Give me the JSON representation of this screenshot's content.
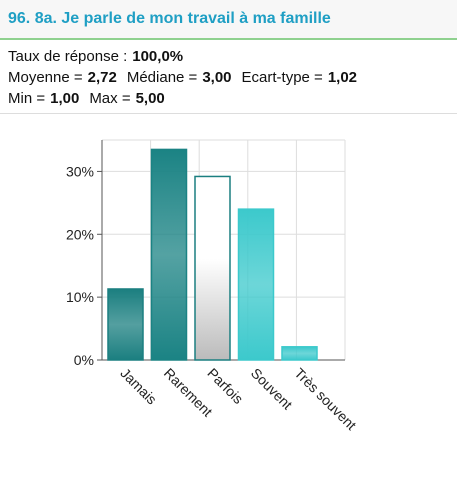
{
  "header": {
    "title": "96. 8a. Je parle de mon travail à ma famille"
  },
  "stats": [
    [
      {
        "label": "Taux de réponse :",
        "value": "100,0%"
      }
    ],
    [
      {
        "label": "Moyenne =",
        "value": "2,72"
      },
      {
        "label": "Médiane =",
        "value": "3,00"
      },
      {
        "label": "Ecart-type =",
        "value": "1,02"
      }
    ],
    [
      {
        "label": "Min =",
        "value": "1,00"
      },
      {
        "label": "Max =",
        "value": "5,00"
      }
    ]
  ],
  "chart_data": {
    "type": "bar",
    "categories": [
      "Jamais",
      "Rarement",
      "Parfois",
      "Souvent",
      "Très souvent"
    ],
    "values": [
      11.3,
      33.5,
      29.2,
      24.0,
      2.1
    ],
    "colors": [
      "#1b7f80",
      "#1b8384",
      "#ffffff",
      "#3cc9cc",
      "#3cc9cc"
    ],
    "ylim": [
      0,
      35
    ],
    "yticks": [
      {
        "value": 0,
        "label": "0%"
      },
      {
        "value": 10,
        "label": "10%"
      },
      {
        "value": 20,
        "label": "20%"
      },
      {
        "value": 30,
        "label": "30%"
      }
    ],
    "grid": true
  }
}
